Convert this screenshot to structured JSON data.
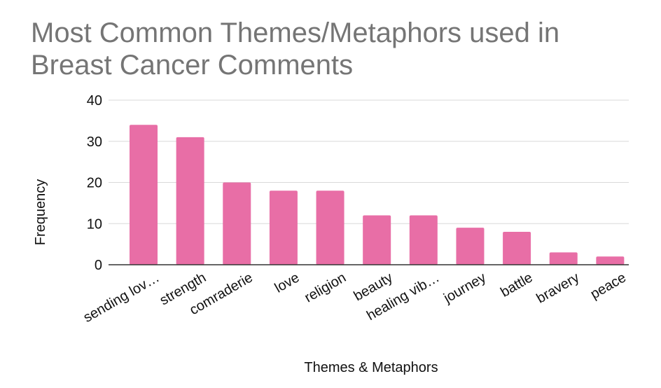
{
  "chart_data": {
    "type": "bar",
    "title": "Most Common Themes/Metaphors used in Breast Cancer Comments",
    "xlabel": "Themes & Metaphors",
    "ylabel": "Frequency",
    "categories": [
      "sending lov…",
      "strength",
      "comraderie",
      "love",
      "religion",
      "beauty",
      "healing vib…",
      "journey",
      "battle",
      "bravery",
      "peace"
    ],
    "values": [
      34,
      31,
      20,
      18,
      18,
      12,
      12,
      9,
      8,
      3,
      2
    ],
    "ylim": [
      0,
      40
    ],
    "yticks": [
      0,
      10,
      20,
      30,
      40
    ],
    "grid": true,
    "bar_color": "#e86ea6",
    "gridline_color": "#d9d9d9",
    "axis_color": "#333333"
  }
}
